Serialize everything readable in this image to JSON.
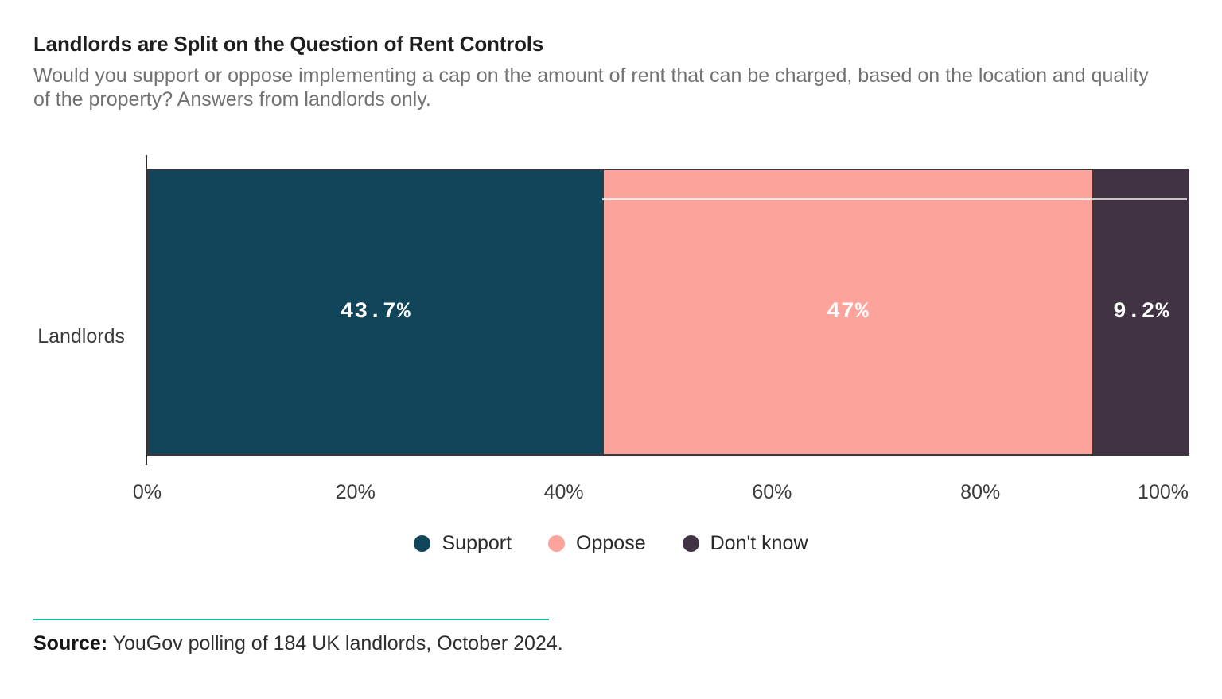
{
  "header": {
    "title": "Landlords are Split on the Question of Rent Controls",
    "subtitle": "Would you support or oppose implementing a cap on the amount of rent that can be charged, based on the location and quality of the property? Answers from landlords only."
  },
  "chart_data": {
    "type": "bar",
    "orientation": "horizontal",
    "stacked": true,
    "title": "Landlords are Split on the Question of Rent Controls",
    "categories": [
      "Landlords"
    ],
    "series": [
      {
        "name": "Support",
        "values": [
          43.7
        ],
        "label": "43.7%",
        "color": "#10455a"
      },
      {
        "name": "Oppose",
        "values": [
          47
        ],
        "label": "47%",
        "color": "#fca39b"
      },
      {
        "name": "Don't know",
        "values": [
          9.2
        ],
        "label": "9.2%",
        "color": "#413343"
      }
    ],
    "xlim": [
      0,
      100
    ],
    "x_ticks": [
      "0%",
      "20%",
      "40%",
      "60%",
      "80%",
      "100%"
    ],
    "grid": false,
    "legend_position": "bottom",
    "bar_label_color": "#ffffff",
    "bar_border_color": "#39373c",
    "inner_divider_color": "rgba(255,255,255,0.72)"
  },
  "footer": {
    "source_label": "Source:",
    "source_text": "YouGov polling of 184 UK landlords, October 2024.",
    "divider_color": "#12c3a0"
  }
}
